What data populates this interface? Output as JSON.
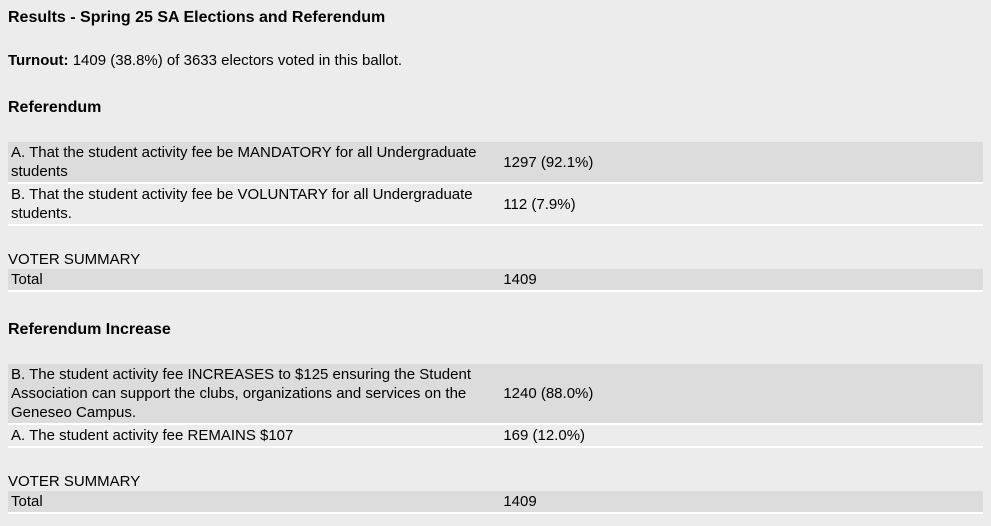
{
  "page": {
    "title": "Results - Spring 25 SA Elections and Referendum",
    "turnout_label": "Turnout:",
    "turnout_text": "1409 (38.8%) of 3633 electors voted in this ballot."
  },
  "sections": [
    {
      "heading": "Referendum",
      "rows": [
        {
          "option": "A. That the student activity fee be MANDATORY for all Undergraduate students",
          "votes": "1297 (92.1%)"
        },
        {
          "option": "B. That the student activity fee be VOLUNTARY for all Undergraduate students.",
          "votes": "112 (7.9%)"
        }
      ],
      "voter_summary_label": "VOTER SUMMARY",
      "total_label": "Total",
      "total_value": "1409"
    },
    {
      "heading": "Referendum Increase",
      "rows": [
        {
          "option": "B. The student activity fee INCREASES to $125 ensuring the Student Association can support the clubs, organizations and services on the Geneseo Campus.",
          "votes": "1240 (88.0%)"
        },
        {
          "option": "A. The student activity fee REMAINS $107",
          "votes": "169 (12.0%)"
        }
      ],
      "voter_summary_label": "VOTER SUMMARY",
      "total_label": "Total",
      "total_value": "1409"
    }
  ],
  "colors": {
    "background": "#ececec",
    "row_shaded": "#dcdcdc",
    "row_plain": "#ececec",
    "row_separator": "#ffffff",
    "text": "#000000"
  }
}
